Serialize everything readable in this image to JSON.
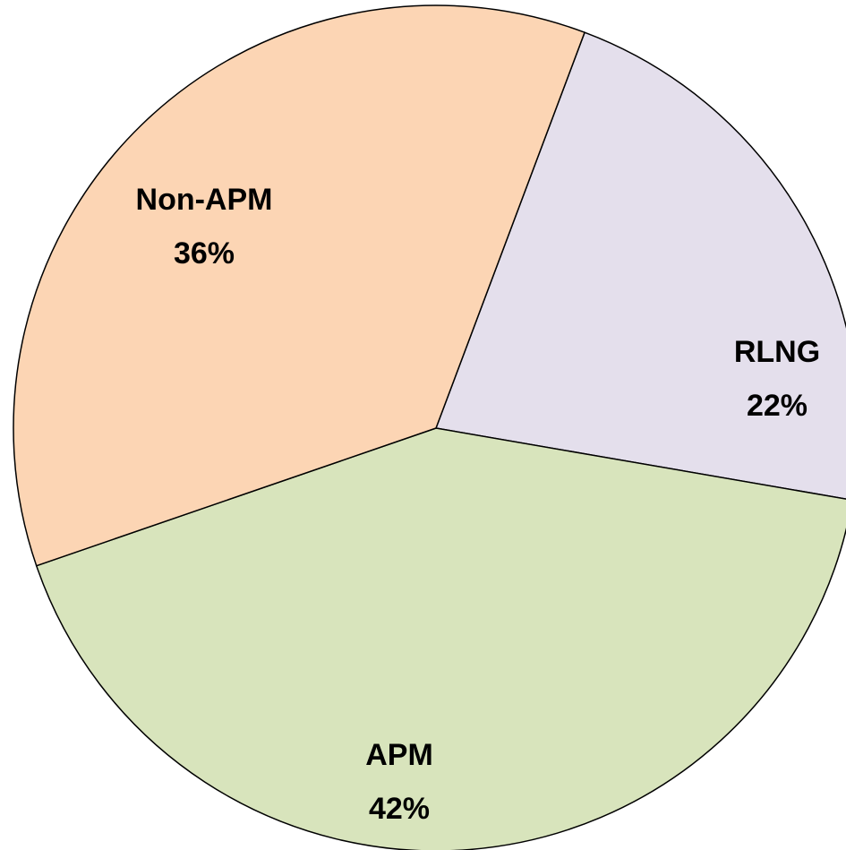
{
  "chart_data": {
    "type": "pie",
    "categories": [
      "RLNG",
      "APM",
      "Non-APM"
    ],
    "values": [
      22,
      42,
      36
    ],
    "value_labels": [
      "22%",
      "42%",
      "36%"
    ],
    "colors": [
      "#e4dfec",
      "#d8e4bc",
      "#fcd5b4"
    ]
  }
}
